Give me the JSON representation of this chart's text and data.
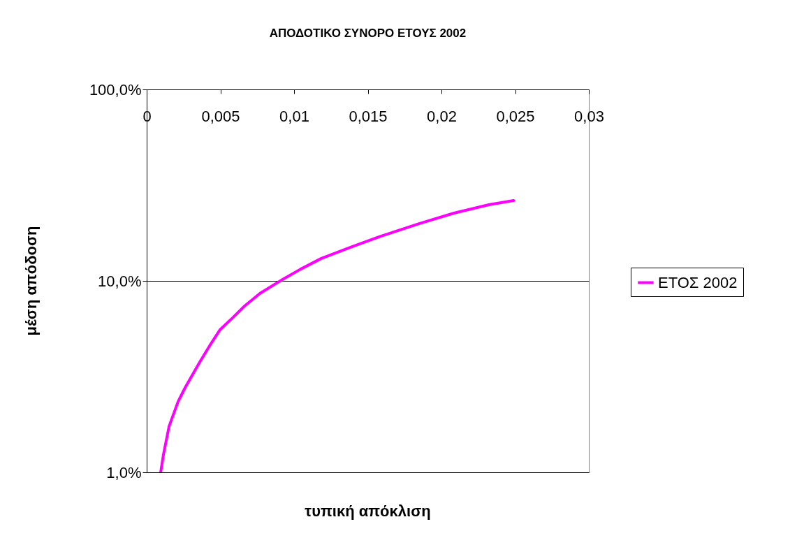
{
  "chart_data": {
    "type": "line",
    "title": "ΑΠΟΔΟΤΙΚΟ ΣΥΝΟΡΟ ΕΤΟΥΣ 2002",
    "xlabel": "τυπική απόκλιση",
    "ylabel": "μέση απόδοση",
    "x": [
      0.00095,
      0.00114,
      0.00152,
      0.00213,
      0.00261,
      0.00355,
      0.00427,
      0.00497,
      0.00583,
      0.00664,
      0.00768,
      0.00924,
      0.01043,
      0.01185,
      0.01374,
      0.01588,
      0.01848,
      0.02085,
      0.02322,
      0.0249
    ],
    "series": [
      {
        "name": "ΕΤΟΣ 2002",
        "color": "#ff00ff",
        "values": [
          1.0,
          1.24,
          1.74,
          2.34,
          2.77,
          3.71,
          4.58,
          5.55,
          6.41,
          7.39,
          8.6,
          10.2,
          11.5,
          13.1,
          14.9,
          17.1,
          19.9,
          22.6,
          25,
          26.3
        ]
      }
    ],
    "xlim": [
      0,
      0.03
    ],
    "xticks": [
      0,
      {
        "value": 0.005,
        "label": "0,005"
      },
      {
        "value": 0.01,
        "label": "0,01"
      },
      {
        "value": 0.015,
        "label": "0,015"
      },
      {
        "value": 0.02,
        "label": "0,02"
      },
      {
        "value": 0.025,
        "label": "0,025"
      },
      {
        "value": 0.03,
        "label": "0,03"
      }
    ],
    "ylim": [
      1,
      100
    ],
    "yticks": [
      {
        "value": 1,
        "label": "1,0%"
      },
      {
        "value": 10,
        "label": "10,0%"
      },
      {
        "value": 100,
        "label": "100,0%"
      }
    ],
    "log": "y",
    "grid": "y",
    "legend": "right",
    "marker": "none",
    "line_style": "solid"
  }
}
